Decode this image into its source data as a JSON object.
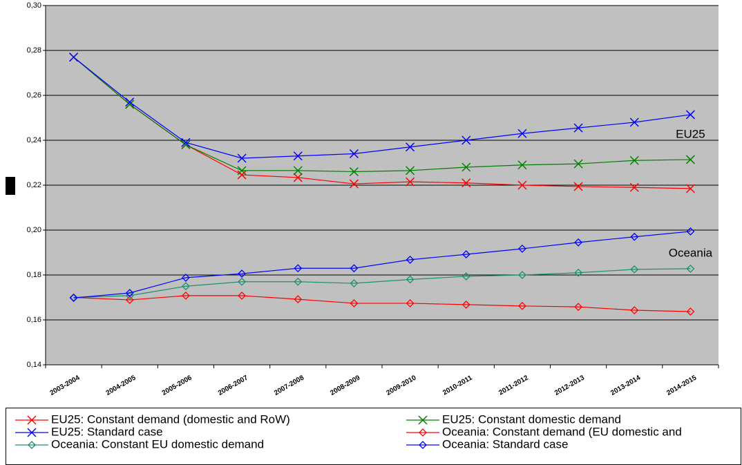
{
  "chart_data": {
    "type": "line",
    "categories": [
      "2003-2004",
      "2004-2005",
      "2005-2006",
      "2006-2007",
      "2007-2008",
      "2008-2009",
      "2009-2010",
      "2010-2011",
      "2011-2012",
      "2012-2013",
      "2013-2014",
      "2014-2015"
    ],
    "ylim": [
      0.14,
      0.3
    ],
    "yticks": [
      {
        "value": 0.14,
        "label": "0,14"
      },
      {
        "value": 0.16,
        "label": "0,16"
      },
      {
        "value": 0.18,
        "label": "0,18"
      },
      {
        "value": 0.2,
        "label": "0,20"
      },
      {
        "value": 0.22,
        "label": "0,22"
      },
      {
        "value": 0.24,
        "label": "0,24"
      },
      {
        "value": 0.26,
        "label": "0,26"
      },
      {
        "value": 0.28,
        "label": "0,28"
      },
      {
        "value": 0.3,
        "label": "0,30"
      }
    ],
    "grid": true,
    "annotations": [
      {
        "text": "EU25",
        "x": 11,
        "y": 0.2425
      },
      {
        "text": "Oceania",
        "x": 11,
        "y": 0.1895
      }
    ],
    "series": [
      {
        "name": "EU25: Constant demand (domestic and RoW)",
        "color": "#ff0000",
        "marker": "x",
        "values": [
          0.277,
          0.256,
          0.238,
          0.2246,
          0.2234,
          0.2206,
          0.2215,
          0.221,
          0.22,
          0.2194,
          0.219,
          0.2185
        ]
      },
      {
        "name": "EU25: Constant domestic demand",
        "color": "#008000",
        "marker": "x",
        "values": [
          0.277,
          0.256,
          0.238,
          0.2265,
          0.2265,
          0.226,
          0.2265,
          0.228,
          0.229,
          0.2295,
          0.231,
          0.2314
        ]
      },
      {
        "name": "EU25: Standard case",
        "color": "#0000ff",
        "marker": "x",
        "values": [
          0.277,
          0.257,
          0.239,
          0.232,
          0.233,
          0.234,
          0.237,
          0.24,
          0.243,
          0.2455,
          0.248,
          0.2514
        ]
      },
      {
        "name": "Oceania: Constant demand (EU domestic and",
        "color": "#ff0000",
        "marker": "diamond",
        "values": [
          0.17,
          0.1689,
          0.1708,
          0.1708,
          0.1692,
          0.1674,
          0.1674,
          0.1668,
          0.1662,
          0.1658,
          0.1643,
          0.1637
        ]
      },
      {
        "name": "Oceania: Constant EU domestic demand",
        "color": "#1a9070",
        "marker": "diamond",
        "values": [
          0.17,
          0.1708,
          0.175,
          0.177,
          0.177,
          0.1763,
          0.178,
          0.1794,
          0.18,
          0.181,
          0.1825,
          0.1828
        ]
      },
      {
        "name": "Oceania: Standard case",
        "color": "#0000ff",
        "marker": "diamond",
        "values": [
          0.1698,
          0.172,
          0.1788,
          0.1806,
          0.183,
          0.183,
          0.1868,
          0.1892,
          0.1917,
          0.1945,
          0.197,
          0.1994
        ]
      }
    ]
  }
}
